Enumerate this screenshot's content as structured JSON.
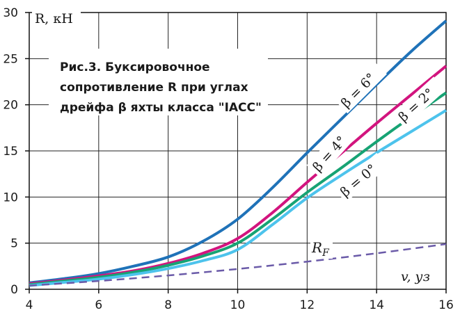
{
  "chart_data": {
    "type": "line",
    "title": "Рис.3. Буксировочное сопротивление R при углах дрейфа β яхты класса \"IACC\"",
    "title_lines": [
      "Рис.3. Буксировочное",
      "сопротивление R при углах",
      "дрейфа β яхты класса \"IACC\""
    ],
    "xlabel": "v, уз",
    "ylabel": "R, кН",
    "xlim": [
      4,
      16
    ],
    "ylim": [
      0,
      30
    ],
    "xticks": [
      4,
      6,
      8,
      10,
      12,
      14,
      16
    ],
    "yticks": [
      0,
      5,
      10,
      15,
      20,
      25,
      30
    ],
    "grid": true,
    "legend": "inline labels",
    "series": [
      {
        "name": "β = 6°",
        "color": "#1f72b8",
        "style": "solid",
        "x": [
          4,
          5,
          6,
          7,
          8,
          9,
          10,
          11,
          12,
          13,
          14,
          15,
          16
        ],
        "y": [
          0.7,
          1.15,
          1.7,
          2.5,
          3.5,
          5.2,
          7.6,
          11.0,
          14.8,
          18.5,
          22.2,
          25.8,
          29.1
        ]
      },
      {
        "name": "β = 4°",
        "color": "#d2147e",
        "style": "solid",
        "x": [
          4,
          5,
          6,
          7,
          8,
          9,
          10,
          11,
          12,
          13,
          14,
          15,
          16
        ],
        "y": [
          0.6,
          1.0,
          1.45,
          2.0,
          2.8,
          3.9,
          5.5,
          8.3,
          11.6,
          14.8,
          18.0,
          21.1,
          24.2
        ]
      },
      {
        "name": "β = 2°",
        "color": "#17a374",
        "style": "solid",
        "x": [
          4,
          5,
          6,
          7,
          8,
          9,
          10,
          11,
          12,
          13,
          14,
          15,
          16
        ],
        "y": [
          0.5,
          0.9,
          1.3,
          1.85,
          2.6,
          3.6,
          5.0,
          7.6,
          10.5,
          13.2,
          16.0,
          18.7,
          21.3
        ]
      },
      {
        "name": "β = 0°",
        "color": "#4dc3ec",
        "style": "solid",
        "x": [
          4,
          5,
          6,
          7,
          8,
          9,
          10,
          11,
          12,
          13,
          14,
          15,
          16
        ],
        "y": [
          0.4,
          0.75,
          1.1,
          1.6,
          2.25,
          3.1,
          4.3,
          7.0,
          9.9,
          12.4,
          14.8,
          17.1,
          19.4
        ]
      },
      {
        "name": "RF",
        "color": "#6a5aa8",
        "style": "dashed",
        "x": [
          4,
          6,
          8,
          10,
          12,
          14,
          16
        ],
        "y": [
          0.4,
          0.9,
          1.5,
          2.2,
          3.0,
          3.9,
          4.9
        ]
      }
    ]
  }
}
